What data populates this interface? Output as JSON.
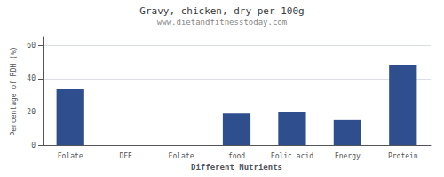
{
  "chart_data": {
    "type": "bar",
    "title": "Gravy, chicken, dry per 100g",
    "subtitle": "www.dietandfitnesstoday.com",
    "xlabel": "Different Nutrients",
    "ylabel": "Percentage of RDH (%)",
    "categories": [
      "Folate",
      "DFE",
      "Folate",
      "food",
      "Folic acid",
      "Energy",
      "Protein"
    ],
    "values": [
      34,
      0,
      0,
      19,
      20,
      15,
      48
    ],
    "color": "#2e4e8e",
    "ylim": [
      0,
      65
    ],
    "yticks": [
      0,
      20,
      40,
      60
    ],
    "grid": true
  }
}
